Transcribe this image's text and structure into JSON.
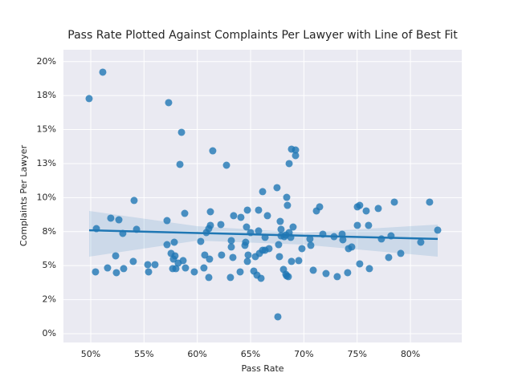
{
  "chart_data": {
    "type": "scatter",
    "title": "Pass Rate Plotted Against Complaints Per Lawyer with Line of Best Fit",
    "x_label": "Pass Rate",
    "y_label": "Complaints Per Lawyer",
    "color": "#1f77b4",
    "grid": true,
    "xlim": [
      47.44,
      84.82
    ],
    "ylim": [
      -0.65,
      20.87
    ],
    "xticks": [
      {
        "value": 50,
        "label": "50%"
      },
      {
        "value": 55,
        "label": "55%"
      },
      {
        "value": 60,
        "label": "60%"
      },
      {
        "value": 65,
        "label": "65%"
      },
      {
        "value": 70,
        "label": "70%"
      },
      {
        "value": 75,
        "label": "75%"
      },
      {
        "value": 80,
        "label": "80%"
      }
    ],
    "yticks": [
      {
        "value": 0,
        "label": "0%"
      },
      {
        "value": 2.5,
        "label": "2%"
      },
      {
        "value": 5,
        "label": "5%"
      },
      {
        "value": 7.5,
        "label": "8%"
      },
      {
        "value": 10,
        "label": "10%"
      },
      {
        "value": 12.5,
        "label": "13%"
      },
      {
        "value": 15,
        "label": "15%"
      },
      {
        "value": 17.5,
        "label": "18%"
      },
      {
        "value": 20,
        "label": "20%"
      }
    ],
    "x": [
      49.85,
      51.13,
      57.31,
      58.52,
      58.37,
      61.45,
      62.74,
      50.53,
      50.45,
      51.58,
      51.88,
      52.64,
      52.34,
      52.41,
      53.01,
      53.09,
      54.07,
      53.99,
      54.3,
      55.35,
      55.43,
      56.03,
      57.16,
      57.16,
      57.54,
      57.84,
      57.69,
      57.99,
      57.76,
      57.91,
      58.21,
      58.67,
      58.89,
      58.82,
      59.72,
      60.32,
      60.62,
      60.7,
      60.85,
      61.08,
      61.15,
      61.08,
      61.23,
      61.23,
      62.28,
      62.21,
      63.11,
      63.19,
      63.19,
      63.34,
      63.41,
      64.02,
      64.09,
      64.47,
      64.54,
      64.7,
      64.62,
      64.7,
      64.77,
      65.0,
      65.3,
      65.45,
      65.6,
      65.75,
      65.75,
      65.83,
      65.98,
      66.13,
      66.13,
      66.36,
      66.36,
      66.58,
      66.73,
      67.48,
      67.63,
      67.71,
      67.78,
      67.86,
      67.86,
      67.56,
      68.09,
      68.16,
      68.31,
      68.31,
      68.39,
      68.46,
      68.39,
      68.54,
      68.62,
      68.62,
      68.77,
      68.84,
      68.84,
      68.99,
      69.22,
      69.22,
      69.52,
      69.82,
      70.57,
      70.65,
      70.88,
      71.18,
      71.48,
      71.78,
      72.08,
      72.83,
      73.13,
      73.59,
      73.66,
      74.11,
      74.19,
      74.49,
      75.02,
      75.02,
      75.24,
      75.24,
      75.85,
      76.15,
      76.07,
      76.98,
      77.28,
      77.96,
      78.18,
      78.49,
      79.09,
      80.97,
      81.8,
      82.56
    ],
    "values": [
      17.28,
      19.22,
      16.98,
      14.8,
      12.44,
      13.44,
      12.38,
      7.72,
      4.54,
      4.83,
      8.49,
      8.37,
      5.72,
      4.48,
      7.37,
      4.78,
      9.79,
      5.31,
      7.67,
      5.07,
      4.54,
      5.07,
      8.31,
      6.54,
      5.9,
      6.72,
      4.78,
      4.78,
      5.48,
      5.72,
      5.19,
      5.37,
      4.83,
      8.84,
      4.54,
      6.78,
      4.83,
      5.78,
      7.43,
      7.72,
      5.48,
      4.13,
      7.96,
      8.96,
      5.78,
      8.02,
      4.13,
      6.84,
      6.37,
      5.6,
      8.67,
      4.54,
      8.55,
      6.49,
      6.72,
      9.08,
      7.84,
      5.31,
      5.78,
      7.43,
      4.6,
      5.66,
      4.3,
      9.08,
      7.55,
      5.9,
      4.07,
      6.13,
      10.44,
      7.08,
      6.13,
      8.67,
      6.25,
      10.73,
      6.54,
      5.66,
      8.25,
      7.19,
      7.67,
      1.24,
      4.72,
      7.13,
      4.36,
      7.25,
      10.02,
      9.43,
      4.25,
      4.19,
      12.5,
      7.43,
      7.08,
      13.56,
      5.31,
      7.84,
      13.5,
      13.09,
      5.37,
      6.25,
      6.96,
      6.49,
      4.66,
      9.02,
      9.32,
      7.31,
      4.42,
      7.13,
      4.19,
      7.31,
      6.9,
      4.48,
      6.25,
      6.37,
      7.96,
      9.32,
      9.43,
      5.13,
      9.02,
      4.78,
      7.96,
      9.2,
      6.96,
      5.6,
      7.19,
      9.67,
      5.9,
      6.72,
      9.67,
      7.61
    ],
    "fit": {
      "color": "#1f77b4",
      "x": [
        49.85,
        60,
        70,
        82.56
      ],
      "values": [
        7.6,
        7.4,
        7.2,
        6.96
      ],
      "ci_lower": [
        5.66,
        6.84,
        6.54,
        5.66
      ],
      "ci_upper": [
        9.02,
        7.9,
        7.43,
        8.02
      ]
    }
  }
}
